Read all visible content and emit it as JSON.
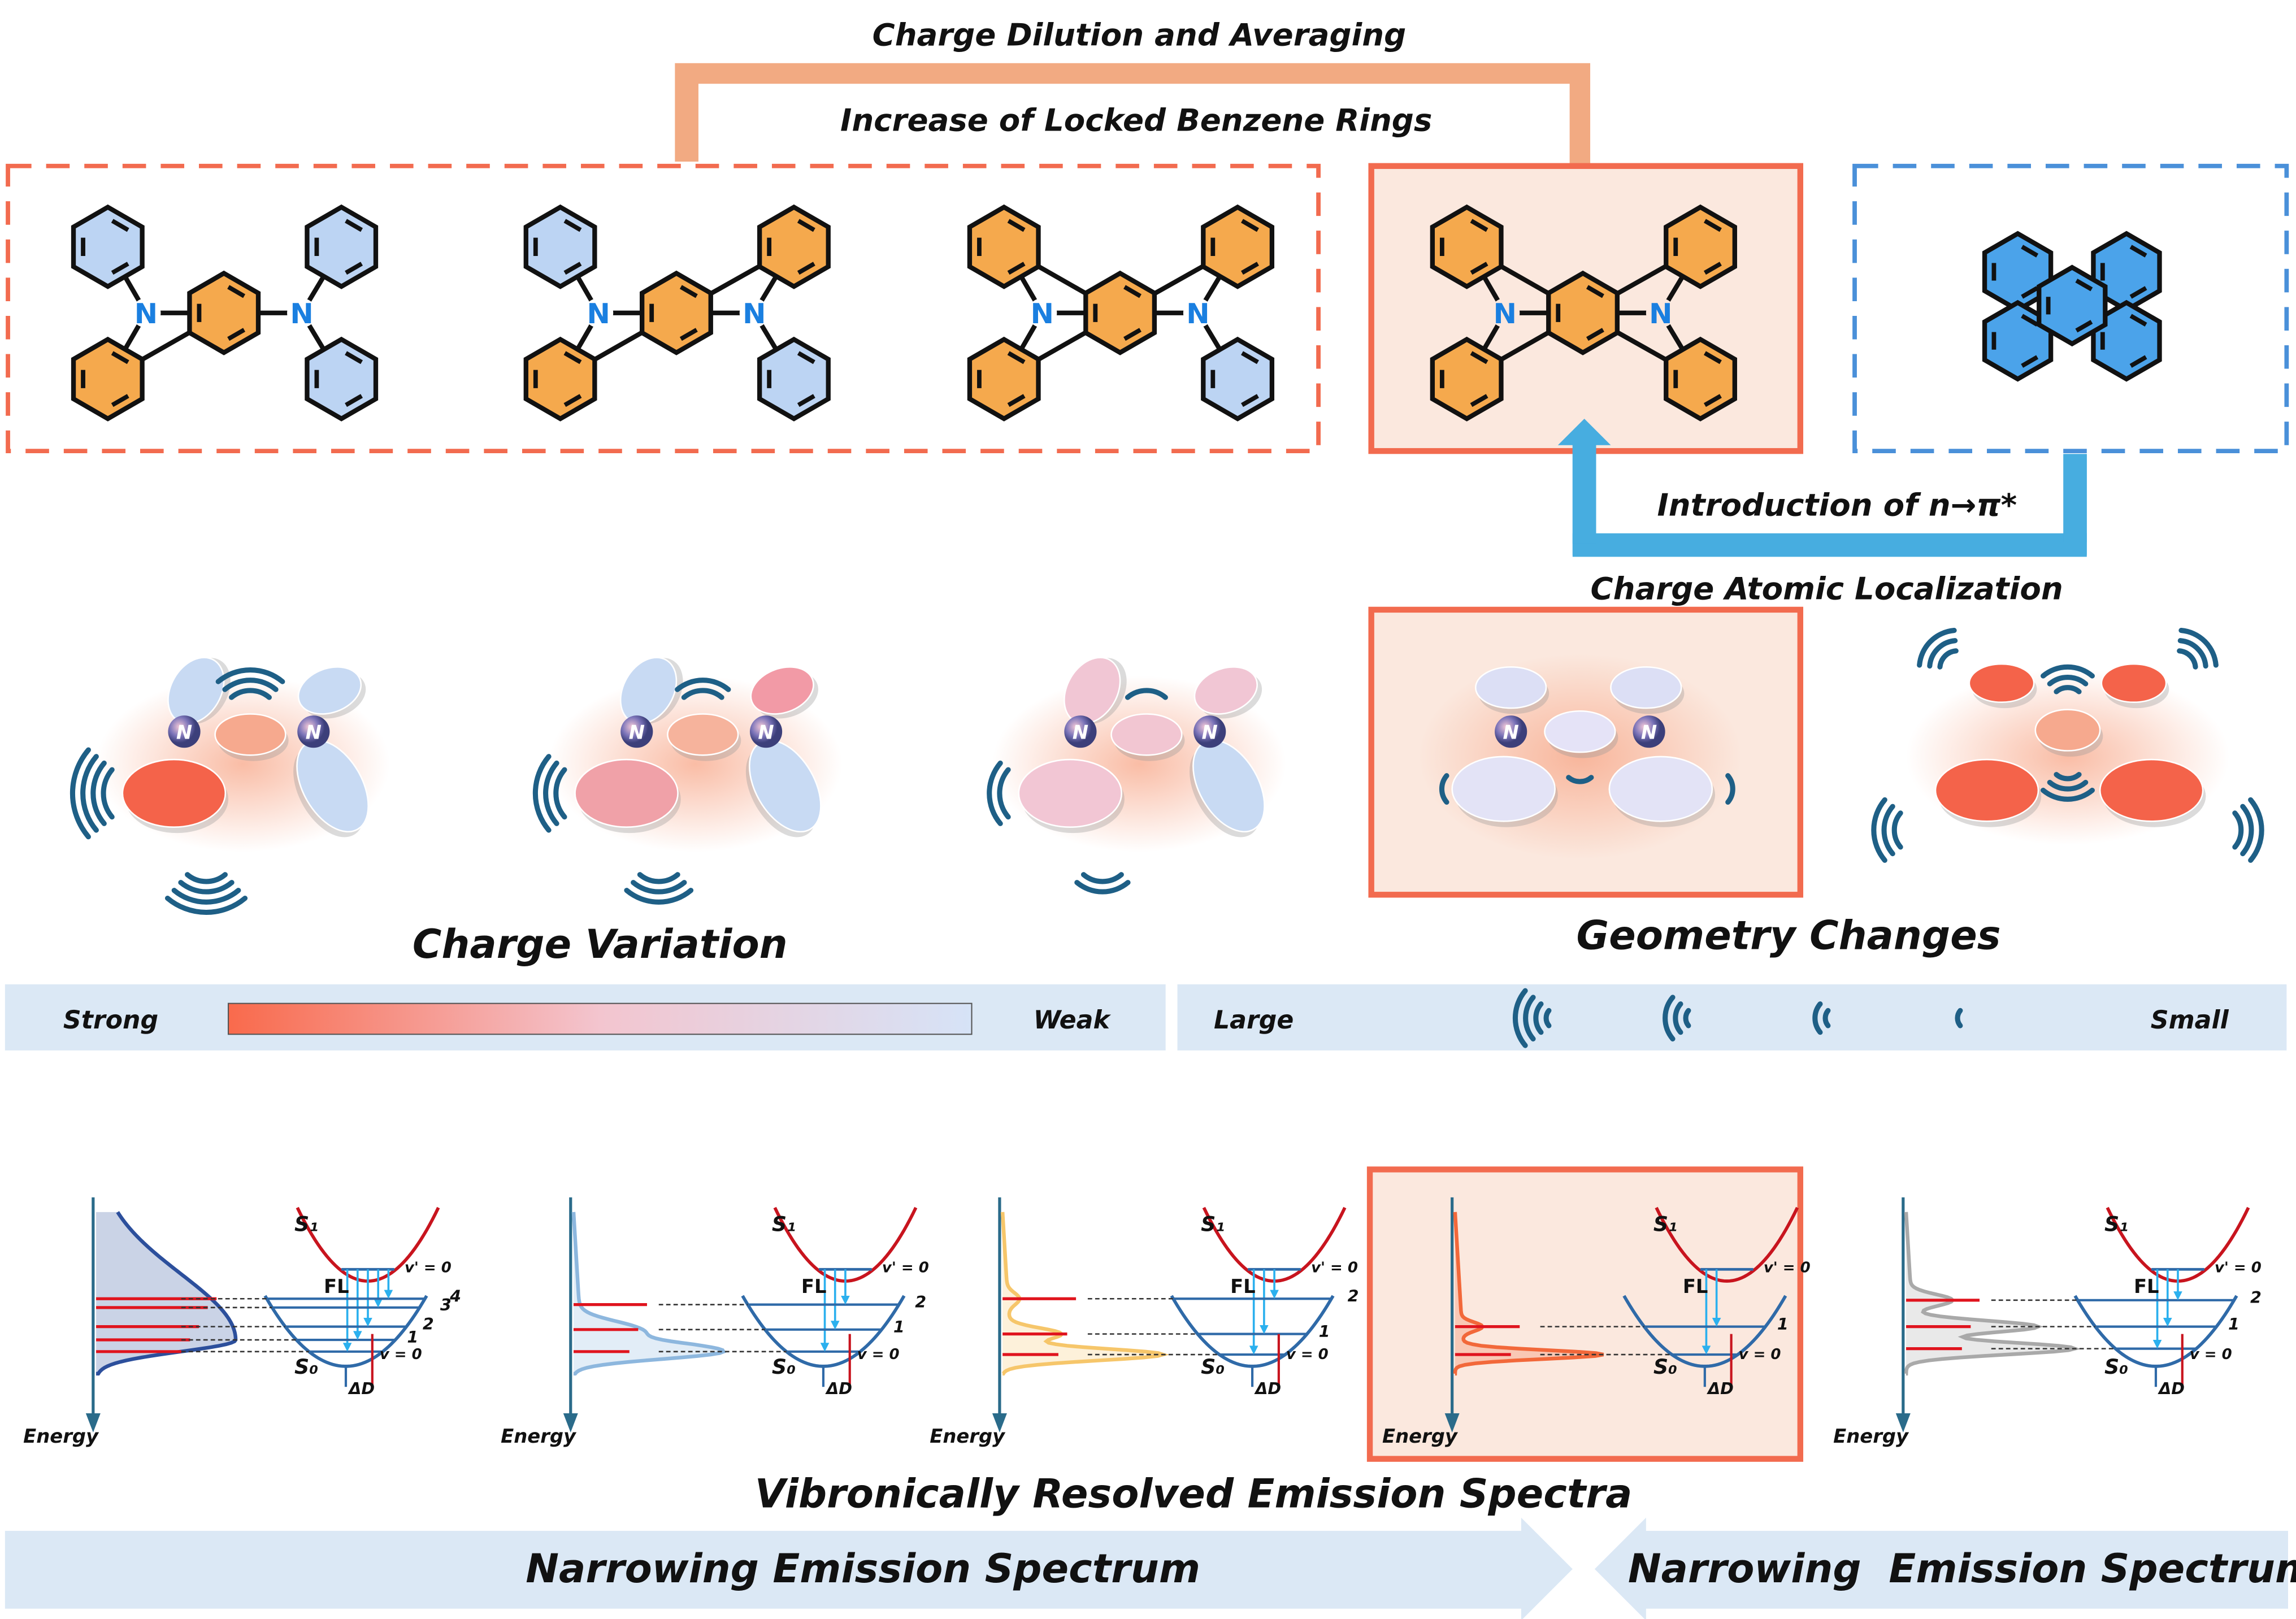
{
  "top": {
    "charge_dilution": "Charge Dilution and Averaging",
    "locked_rings": "Increase of Locked Benzene Rings",
    "n_pi": "Introduction of n→π*",
    "charge_localization": "Charge Atomic Localization"
  },
  "molecules": [
    {
      "rings": [
        "blue",
        "orange",
        "orange",
        "blue",
        "blue",
        "blue"
      ]
    },
    {
      "rings": [
        "blue",
        "orange",
        "orange",
        "orange",
        "blue",
        "blue"
      ]
    },
    {
      "rings": [
        "orange",
        "orange",
        "orange",
        "orange",
        "blue",
        "blue"
      ]
    },
    {
      "rings": [
        "orange",
        "orange",
        "orange",
        "orange",
        "orange",
        "orange"
      ]
    },
    {
      "rings": [
        "blue",
        "blue",
        "blue",
        "blue",
        "blue"
      ]
    }
  ],
  "atom_label": "N",
  "middle": {
    "charge_variation": "Charge Variation",
    "geometry_changes": "Geometry Changes"
  },
  "scale_bar": {
    "strong": "Strong",
    "weak": "Weak",
    "large": "Large",
    "small": "Small",
    "gradient_colors": [
      "#f96a4c",
      "#f3c5cf",
      "#d6e3f7"
    ]
  },
  "spectra": {
    "title": "Vibronically Resolved Emission Spectra",
    "energy": "Energy",
    "s1": "S₁",
    "s0": "S₀",
    "fl": "FL",
    "v_prime": "v' = 0",
    "v0": "v = 0",
    "delta_d": "ΔD",
    "panels": [
      {
        "color": "#2c4f9c",
        "levels": [
          "1",
          "2",
          "3",
          "4"
        ]
      },
      {
        "color": "#8db7de",
        "levels": [
          "1",
          "2"
        ]
      },
      {
        "color": "#f6c66a",
        "levels": [
          "1",
          "2"
        ]
      },
      {
        "color": "#f2683a",
        "levels": [
          "1"
        ]
      },
      {
        "color": "#a9a9a9",
        "levels": [
          "1",
          "2"
        ]
      }
    ]
  },
  "bottom": {
    "left_arrow": "Narrowing Emission Spectrum",
    "right_arrow": "Narrowing  Emission Spectrum"
  },
  "colors": {
    "orange_ring": "#f5a94d",
    "blue_ring": "#bcd4f3",
    "pyrene_blue": "#4ba3ea",
    "highlight_box": "#f26b4f",
    "highlight_fill": "#fbe8de",
    "dashed_blue": "#4a90d9",
    "top_arrow": "#f2aa82",
    "side_arrow": "#47ade0",
    "band": "#dbe8f5"
  }
}
